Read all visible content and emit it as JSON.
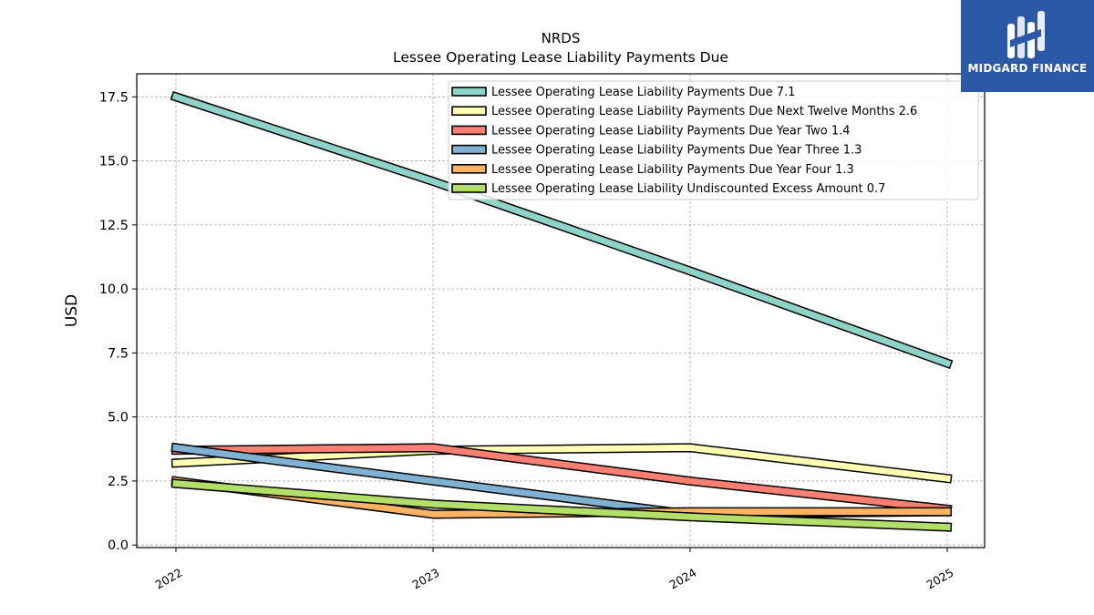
{
  "brand": {
    "name": "MIDGARD FINANCE",
    "color": "#2c58a8"
  },
  "chart_data": {
    "type": "line",
    "title": "NRDS",
    "subtitle": "Lessee Operating Lease Liability Payments Due",
    "xlabel": "",
    "ylabel": "USD",
    "x": [
      "2022",
      "2023",
      "2024",
      "2025"
    ],
    "ylim": [
      -0.1,
      18.4
    ],
    "yticks": [
      "0.0",
      "2.5",
      "5.0",
      "7.5",
      "10.0",
      "12.5",
      "15.0",
      "17.5"
    ],
    "grid": true,
    "legend_position": "top-right",
    "series": [
      {
        "name": "Lessee Operating Lease Liability Payments Due  7.1",
        "color": "#8dd3c7",
        "values": [
          17.5,
          14.2,
          10.7,
          7.1
        ]
      },
      {
        "name": "Lessee Operating Lease Liability Payments Due Next Twelve Months  2.6",
        "color": "#ffffb3",
        "values": [
          3.2,
          3.7,
          3.8,
          2.6
        ]
      },
      {
        "name": "Lessee Operating Lease Liability Payments Due Year Two  1.4",
        "color": "#fb8072",
        "values": [
          3.7,
          3.8,
          2.5,
          1.4
        ]
      },
      {
        "name": "Lessee Operating Lease Liability Payments Due Year Three  1.3",
        "color": "#80b1d3",
        "values": [
          3.8,
          2.5,
          1.2,
          1.3
        ]
      },
      {
        "name": "Lessee Operating Lease Liability Payments Due Year Four  1.3",
        "color": "#fdb462",
        "values": [
          2.5,
          1.2,
          1.3,
          1.3
        ]
      },
      {
        "name": "Lessee Operating Lease Liability Undiscounted Excess Amount  0.7",
        "color": "#b3de69",
        "values": [
          2.4,
          1.6,
          1.1,
          0.7
        ]
      }
    ]
  }
}
